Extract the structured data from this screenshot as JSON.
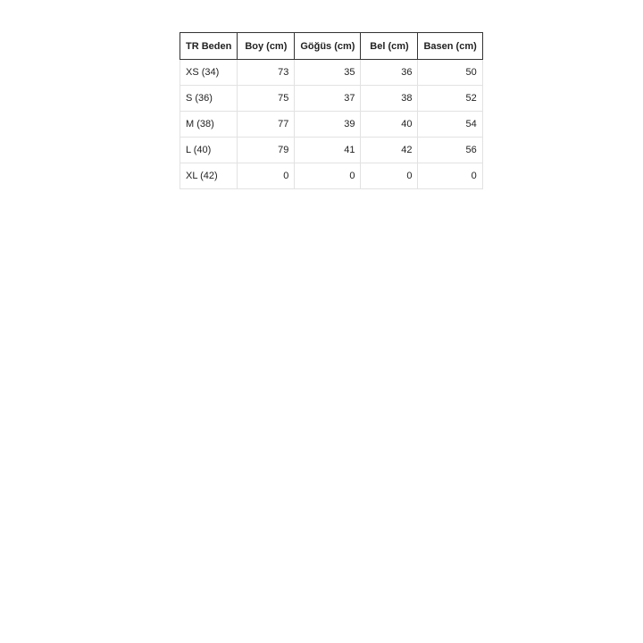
{
  "table": {
    "headers": [
      "TR Beden",
      "Boy (cm)",
      "Göğüs (cm)",
      "Bel (cm)",
      "Basen (cm)"
    ],
    "rows": [
      [
        "XS (34)",
        "73",
        "35",
        "36",
        "50"
      ],
      [
        "S (36)",
        "75",
        "37",
        "38",
        "52"
      ],
      [
        "M (38)",
        "77",
        "39",
        "40",
        "54"
      ],
      [
        "L (40)",
        "79",
        "41",
        "42",
        "56"
      ],
      [
        "XL (42)",
        "0",
        "0",
        "0",
        "0"
      ]
    ]
  }
}
